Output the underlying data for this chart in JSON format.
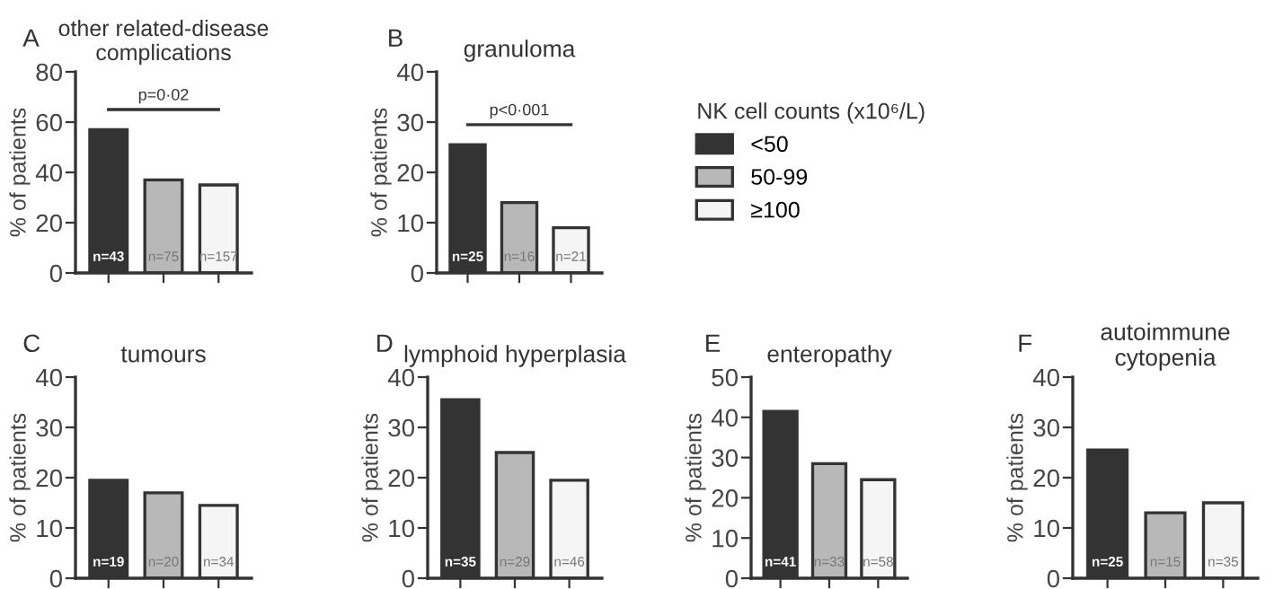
{
  "chart_data": [
    {
      "type": "bar",
      "title": "other related-disease complications",
      "ylabel": "% of patients",
      "categories": [
        null,
        null,
        null
      ],
      "tick_labels": "y",
      "ylim": [
        0,
        80
      ],
      "yticks": [
        0,
        20,
        40,
        60,
        80
      ],
      "annotations": [
        "A",
        "n=43",
        "n=75",
        "n=157",
        "p=0·02"
      ],
      "series": [
        {
          "color": "#333333",
          "values": [
            57,
            null,
            null
          ]
        },
        {
          "color": "#b8b8b8",
          "values": [
            null,
            37,
            null
          ]
        },
        {
          "color": "#f5f5f5",
          "values": [
            null,
            null,
            35
          ]
        }
      ]
    },
    {
      "type": "bar",
      "title": "granuloma",
      "ylabel": "% of patients",
      "categories": [
        null,
        null,
        null
      ],
      "tick_labels": "y",
      "ylim": [
        0,
        40
      ],
      "yticks": [
        0,
        10,
        20,
        30,
        40
      ],
      "annotations": [
        "B",
        "n=25",
        "n=16",
        "n=21",
        "p<0·001"
      ],
      "legend": "right",
      "legend_title": "NK cell counts (x10⁶/L)",
      "series": [
        {
          "name": "<50",
          "color": "#333333",
          "values": [
            25.5,
            null,
            null
          ]
        },
        {
          "name": "50-99",
          "color": "#b8b8b8",
          "values": [
            null,
            14,
            null
          ]
        },
        {
          "name": "≥100",
          "color": "#f5f5f5",
          "values": [
            null,
            null,
            9
          ]
        }
      ]
    },
    {
      "type": "bar",
      "title": "tumours",
      "ylabel": "% of patients",
      "categories": [
        null,
        null,
        null
      ],
      "tick_labels": "y",
      "ylim": [
        0,
        40
      ],
      "yticks": [
        0,
        10,
        20,
        30,
        40
      ],
      "annotations": [
        "C",
        "n=19",
        "n=20",
        "n=34"
      ],
      "series": [
        {
          "color": "#333333",
          "values": [
            19.5,
            null,
            null
          ]
        },
        {
          "color": "#b8b8b8",
          "values": [
            null,
            17,
            null
          ]
        },
        {
          "color": "#f5f5f5",
          "values": [
            null,
            null,
            14.5
          ]
        }
      ]
    },
    {
      "type": "bar",
      "title": "lymphoid hyperplasia",
      "ylabel": "% of patients",
      "categories": [
        null,
        null,
        null
      ],
      "tick_labels": "y",
      "ylim": [
        0,
        40
      ],
      "yticks": [
        0,
        10,
        20,
        30,
        40
      ],
      "annotations": [
        "D",
        "n=35",
        "n=29",
        "n=46"
      ],
      "series": [
        {
          "color": "#333333",
          "values": [
            35.5,
            null,
            null
          ]
        },
        {
          "color": "#b8b8b8",
          "values": [
            null,
            25,
            null
          ]
        },
        {
          "color": "#f5f5f5",
          "values": [
            null,
            null,
            19.5
          ]
        }
      ]
    },
    {
      "type": "bar",
      "title": "enteropathy",
      "ylabel": "% of patients",
      "categories": [
        null,
        null,
        null
      ],
      "tick_labels": "y",
      "ylim": [
        0,
        50
      ],
      "yticks": [
        0,
        10,
        20,
        30,
        40,
        50
      ],
      "annotations": [
        "E",
        "n=41",
        "n=33",
        "n=58"
      ],
      "series": [
        {
          "color": "#333333",
          "values": [
            41.5,
            null,
            null
          ]
        },
        {
          "color": "#b8b8b8",
          "values": [
            null,
            28.5,
            null
          ]
        },
        {
          "color": "#f5f5f5",
          "values": [
            null,
            null,
            24.5
          ]
        }
      ]
    },
    {
      "type": "bar",
      "title": "autoimmune cytopenia",
      "ylabel": "% of patients",
      "categories": [
        null,
        null,
        null
      ],
      "tick_labels": "y",
      "ylim": [
        0,
        40
      ],
      "yticks": [
        0,
        10,
        20,
        30,
        40
      ],
      "annotations": [
        "F",
        "n=25",
        "n=15",
        "n=35"
      ],
      "series": [
        {
          "color": "#333333",
          "values": [
            25.5,
            null,
            null
          ]
        },
        {
          "color": "#b8b8b8",
          "values": [
            null,
            13,
            null
          ]
        },
        {
          "color": "#f5f5f5",
          "values": [
            null,
            null,
            15
          ]
        }
      ]
    }
  ]
}
